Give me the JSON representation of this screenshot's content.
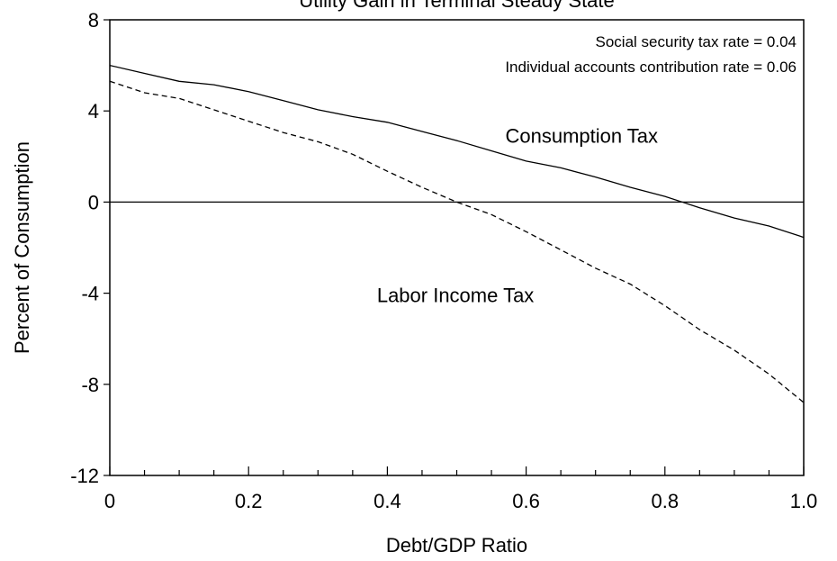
{
  "chart_data": {
    "type": "line",
    "title": "Utility Gain in Terminal Steady State",
    "xlabel": "Debt/GDP Ratio",
    "ylabel": "Percent of Consumption",
    "xlim": [
      0,
      1.0
    ],
    "ylim": [
      -12,
      8
    ],
    "x_ticks": [
      0,
      0.2,
      0.4,
      0.6,
      0.8,
      1.0
    ],
    "x_tick_labels": [
      "0",
      "0.2",
      "0.4",
      "0.6",
      "0.8",
      "1.0"
    ],
    "x_minor_ticks": [
      0.05,
      0.1,
      0.15,
      0.25,
      0.3,
      0.35,
      0.45,
      0.5,
      0.55,
      0.65,
      0.7,
      0.75,
      0.85,
      0.9,
      0.95
    ],
    "y_ticks": [
      -12,
      -8,
      -4,
      0,
      4,
      8
    ],
    "y_tick_labels": [
      "-12",
      "-8",
      "-4",
      "0",
      "4",
      "8"
    ],
    "reference_line_y": 0,
    "annotations": [
      "Social security tax rate = 0.04",
      "Individual accounts contribution rate = 0.06"
    ],
    "series": [
      {
        "name": "Consumption Tax",
        "style": "solid",
        "x": [
          0,
          0.05,
          0.1,
          0.15,
          0.2,
          0.25,
          0.3,
          0.35,
          0.4,
          0.45,
          0.5,
          0.55,
          0.6,
          0.65,
          0.7,
          0.75,
          0.8,
          0.85,
          0.9,
          0.95,
          1.0
        ],
        "y": [
          6.0,
          5.65,
          5.3,
          5.15,
          4.85,
          4.45,
          4.05,
          3.75,
          3.5,
          3.1,
          2.7,
          2.25,
          1.8,
          1.5,
          1.1,
          0.65,
          0.25,
          -0.25,
          -0.7,
          -1.05,
          -1.55
        ]
      },
      {
        "name": "Labor Income Tax",
        "style": "dashed",
        "x": [
          0,
          0.05,
          0.1,
          0.15,
          0.2,
          0.25,
          0.3,
          0.35,
          0.4,
          0.45,
          0.5,
          0.55,
          0.6,
          0.65,
          0.7,
          0.75,
          0.8,
          0.85,
          0.9,
          0.95,
          1.0
        ],
        "y": [
          5.3,
          4.8,
          4.55,
          4.05,
          3.55,
          3.05,
          2.65,
          2.1,
          1.35,
          0.65,
          0.0,
          -0.55,
          -1.3,
          -2.1,
          -2.9,
          -3.6,
          -4.55,
          -5.6,
          -6.5,
          -7.55,
          -8.8
        ]
      }
    ],
    "series_label_positions": [
      {
        "name": "Consumption Tax",
        "x": 0.57,
        "y": 2.6
      },
      {
        "name": "Labor Income Tax",
        "x": 0.385,
        "y": -4.4
      }
    ]
  }
}
